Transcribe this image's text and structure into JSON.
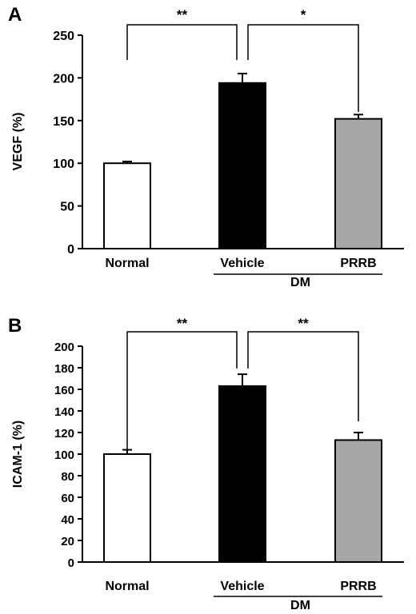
{
  "chart_data": [
    {
      "panel_label": "A",
      "type": "bar",
      "categories": [
        "Normal",
        "Vehicle",
        "PRRB"
      ],
      "values": [
        100,
        194,
        152
      ],
      "errors": [
        2,
        11,
        5
      ],
      "bar_colors": [
        "#ffffff",
        "#000000",
        "#a6a6a6"
      ],
      "ylabel": "VEGF (%)",
      "xlabel": "",
      "ylim": [
        0,
        250
      ],
      "yticks": [
        "0",
        "50",
        "100",
        "150",
        "200",
        "250"
      ],
      "group_label": "DM",
      "group_members": [
        "Vehicle",
        "PRRB"
      ],
      "significance": [
        {
          "from": "Normal",
          "to": "Vehicle",
          "label": "**"
        },
        {
          "from": "Vehicle",
          "to": "PRRB",
          "label": "*"
        }
      ]
    },
    {
      "panel_label": "B",
      "type": "bar",
      "categories": [
        "Normal",
        "Vehicle",
        "PRRB"
      ],
      "values": [
        100,
        163,
        113
      ],
      "errors": [
        4,
        11,
        7
      ],
      "bar_colors": [
        "#ffffff",
        "#000000",
        "#a6a6a6"
      ],
      "ylabel": "ICAM-1 (%)",
      "xlabel": "",
      "ylim": [
        0,
        200
      ],
      "yticks": [
        "0",
        "20",
        "40",
        "60",
        "80",
        "100",
        "120",
        "140",
        "160",
        "180",
        "200"
      ],
      "group_label": "DM",
      "group_members": [
        "Vehicle",
        "PRRB"
      ],
      "significance": [
        {
          "from": "Normal",
          "to": "Vehicle",
          "label": "**"
        },
        {
          "from": "Vehicle",
          "to": "PRRB",
          "label": "**"
        }
      ]
    }
  ]
}
